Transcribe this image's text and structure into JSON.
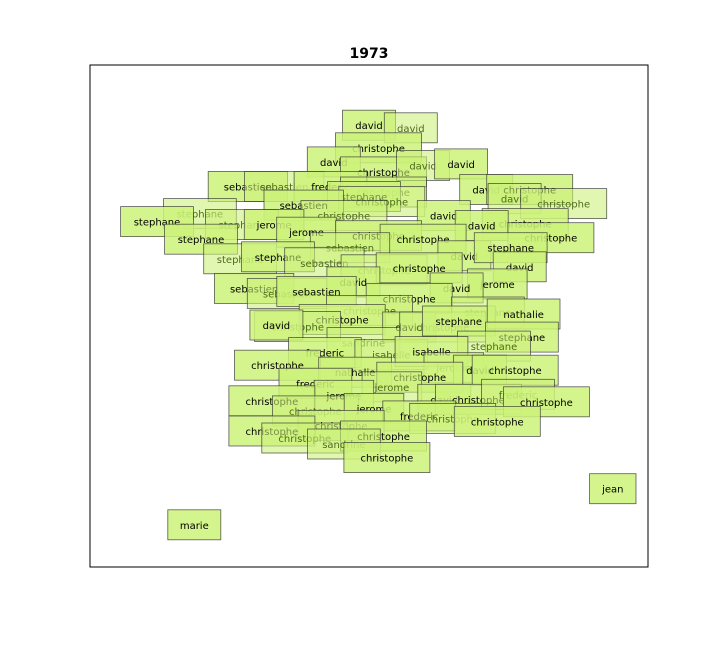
{
  "chart_data": {
    "type": "scatter",
    "title": "1973",
    "xlabel": "",
    "ylabel": "",
    "xlim": [
      0,
      1
    ],
    "ylim": [
      0,
      1
    ],
    "axis_ticks": false,
    "grid": false,
    "box_fill": "#ccf27a",
    "box_edge": "#333333",
    "points": [
      {
        "label": "david",
        "x": 0.5,
        "y": 0.88
      },
      {
        "label": "david",
        "x": 0.575,
        "y": 0.875,
        "alpha": 0.65
      },
      {
        "label": "christophe",
        "x": 0.517,
        "y": 0.835
      },
      {
        "label": "david",
        "x": 0.437,
        "y": 0.807
      },
      {
        "label": "christophe",
        "x": 0.526,
        "y": 0.787
      },
      {
        "label": "david",
        "x": 0.597,
        "y": 0.8,
        "alpha": 0.65
      },
      {
        "label": "david",
        "x": 0.665,
        "y": 0.803
      },
      {
        "label": "sebastien",
        "x": 0.283,
        "y": 0.758
      },
      {
        "label": "sebastien",
        "x": 0.348,
        "y": 0.758,
        "alpha": 0.65
      },
      {
        "label": "frederic",
        "x": 0.431,
        "y": 0.758
      },
      {
        "label": "christophe",
        "x": 0.526,
        "y": 0.747,
        "alpha": 0.65
      },
      {
        "label": "stephane",
        "x": 0.491,
        "y": 0.738
      },
      {
        "label": "christophe",
        "x": 0.523,
        "y": 0.728,
        "alpha": 0.65
      },
      {
        "label": "david",
        "x": 0.71,
        "y": 0.752
      },
      {
        "label": "christophe",
        "x": 0.788,
        "y": 0.752
      },
      {
        "label": "david",
        "x": 0.761,
        "y": 0.734,
        "alpha": 0.65
      },
      {
        "label": "christophe",
        "x": 0.849,
        "y": 0.724,
        "alpha": 0.65
      },
      {
        "label": "stephane",
        "x": 0.197,
        "y": 0.704,
        "alpha": 0.65
      },
      {
        "label": "stephane",
        "x": 0.12,
        "y": 0.688
      },
      {
        "label": "sebastien",
        "x": 0.383,
        "y": 0.721
      },
      {
        "label": "christophe",
        "x": 0.455,
        "y": 0.7,
        "alpha": 0.65
      },
      {
        "label": "david",
        "x": 0.634,
        "y": 0.7
      },
      {
        "label": "christophe",
        "x": 0.78,
        "y": 0.684
      },
      {
        "label": "david",
        "x": 0.702,
        "y": 0.68
      },
      {
        "label": "stephane",
        "x": 0.272,
        "y": 0.682,
        "alpha": 0.65
      },
      {
        "label": "jerome",
        "x": 0.33,
        "y": 0.682
      },
      {
        "label": "jerome",
        "x": 0.388,
        "y": 0.667
      },
      {
        "label": "stephane",
        "x": 0.199,
        "y": 0.653
      },
      {
        "label": "christophe",
        "x": 0.517,
        "y": 0.66
      },
      {
        "label": "christophe",
        "x": 0.597,
        "y": 0.653
      },
      {
        "label": "christophe",
        "x": 0.826,
        "y": 0.656
      },
      {
        "label": "sebastien",
        "x": 0.466,
        "y": 0.636,
        "alpha": 0.65
      },
      {
        "label": "stephane",
        "x": 0.269,
        "y": 0.614,
        "alpha": 0.65
      },
      {
        "label": "stephane",
        "x": 0.337,
        "y": 0.618
      },
      {
        "label": "sebastien",
        "x": 0.42,
        "y": 0.606,
        "alpha": 0.65
      },
      {
        "label": "david",
        "x": 0.671,
        "y": 0.62
      },
      {
        "label": "stephane",
        "x": 0.754,
        "y": 0.636
      },
      {
        "label": "christophe",
        "x": 0.527,
        "y": 0.592,
        "alpha": 0.65
      },
      {
        "label": "christophe",
        "x": 0.59,
        "y": 0.596
      },
      {
        "label": "david",
        "x": 0.77,
        "y": 0.598
      },
      {
        "label": "david",
        "x": 0.472,
        "y": 0.568
      },
      {
        "label": "jerome",
        "x": 0.73,
        "y": 0.564
      },
      {
        "label": "sebastien",
        "x": 0.294,
        "y": 0.555
      },
      {
        "label": "sebastien",
        "x": 0.353,
        "y": 0.545,
        "alpha": 0.65
      },
      {
        "label": "sebastien",
        "x": 0.406,
        "y": 0.549
      },
      {
        "label": "david",
        "x": 0.657,
        "y": 0.556
      },
      {
        "label": "christophe",
        "x": 0.572,
        "y": 0.535
      },
      {
        "label": "christophe",
        "x": 0.501,
        "y": 0.511,
        "alpha": 0.65
      },
      {
        "label": "stephane",
        "x": 0.713,
        "y": 0.508,
        "alpha": 0.65
      },
      {
        "label": "christophe",
        "x": 0.452,
        "y": 0.493
      },
      {
        "label": "christophe",
        "x": 0.372,
        "y": 0.479,
        "alpha": 0.65
      },
      {
        "label": "david",
        "x": 0.334,
        "y": 0.482
      },
      {
        "label": "david",
        "x": 0.572,
        "y": 0.478
      },
      {
        "label": "christophe",
        "x": 0.632,
        "y": 0.478,
        "alpha": 0.65
      },
      {
        "label": "stephane",
        "x": 0.661,
        "y": 0.49
      },
      {
        "label": "nathalie",
        "x": 0.777,
        "y": 0.504
      },
      {
        "label": "stephane",
        "x": 0.774,
        "y": 0.458
      },
      {
        "label": "sandrine",
        "x": 0.49,
        "y": 0.447,
        "alpha": 0.65
      },
      {
        "label": "stephane",
        "x": 0.724,
        "y": 0.44,
        "alpha": 0.65
      },
      {
        "label": "frederic",
        "x": 0.421,
        "y": 0.427
      },
      {
        "label": "isabelle",
        "x": 0.54,
        "y": 0.423,
        "alpha": 0.65
      },
      {
        "label": "isabelle",
        "x": 0.612,
        "y": 0.429
      },
      {
        "label": "christophe",
        "x": 0.336,
        "y": 0.402
      },
      {
        "label": "nathalie",
        "x": 0.475,
        "y": 0.388
      },
      {
        "label": "jerome",
        "x": 0.652,
        "y": 0.397,
        "alpha": 0.65
      },
      {
        "label": "david",
        "x": 0.699,
        "y": 0.392
      },
      {
        "label": "christophe",
        "x": 0.762,
        "y": 0.392
      },
      {
        "label": "christophe",
        "x": 0.591,
        "y": 0.378
      },
      {
        "label": "frederic",
        "x": 0.404,
        "y": 0.366
      },
      {
        "label": "jerome",
        "x": 0.541,
        "y": 0.359,
        "alpha": 0.65
      },
      {
        "label": "jerome",
        "x": 0.455,
        "y": 0.342
      },
      {
        "label": "david",
        "x": 0.635,
        "y": 0.334
      },
      {
        "label": "christophe",
        "x": 0.696,
        "y": 0.334
      },
      {
        "label": "frederic",
        "x": 0.767,
        "y": 0.344,
        "alpha": 0.65
      },
      {
        "label": "christophe",
        "x": 0.818,
        "y": 0.329
      },
      {
        "label": "christophe",
        "x": 0.326,
        "y": 0.331
      },
      {
        "label": "christophe",
        "x": 0.404,
        "y": 0.311,
        "alpha": 0.65
      },
      {
        "label": "jerome",
        "x": 0.509,
        "y": 0.316
      },
      {
        "label": "frederic",
        "x": 0.59,
        "y": 0.301
      },
      {
        "label": "christophe",
        "x": 0.65,
        "y": 0.296,
        "alpha": 0.65
      },
      {
        "label": "christophe",
        "x": 0.73,
        "y": 0.29
      },
      {
        "label": "christophe",
        "x": 0.45,
        "y": 0.282
      },
      {
        "label": "christophe",
        "x": 0.326,
        "y": 0.271
      },
      {
        "label": "christophe",
        "x": 0.385,
        "y": 0.257,
        "alpha": 0.65
      },
      {
        "label": "christophe",
        "x": 0.526,
        "y": 0.261
      },
      {
        "label": "sandrine",
        "x": 0.455,
        "y": 0.245,
        "alpha": 0.65
      },
      {
        "label": "christophe",
        "x": 0.532,
        "y": 0.218
      },
      {
        "label": "jean",
        "x": 0.937,
        "y": 0.156
      },
      {
        "label": "marie",
        "x": 0.187,
        "y": 0.084
      }
    ]
  }
}
